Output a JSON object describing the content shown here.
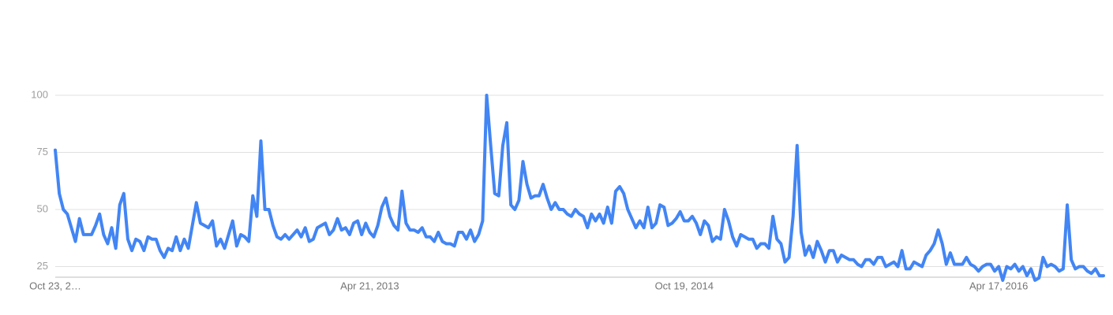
{
  "chart_data": {
    "type": "line",
    "title": "",
    "xlabel": "",
    "ylabel": "",
    "x": {
      "start": "2011-10-23",
      "end": "2016-10-16",
      "interval": "weekly"
    },
    "ylim": [
      0,
      100
    ],
    "y_ticks": [
      25,
      50,
      75,
      100
    ],
    "x_tick_labels": [
      {
        "date": "2011-10-23",
        "label": "Oct 23, 2…"
      },
      {
        "date": "2013-04-21",
        "label": "Apr 21, 2013"
      },
      {
        "date": "2014-10-19",
        "label": "Oct 19, 2014"
      },
      {
        "date": "2016-04-17",
        "label": "Apr 17, 2016"
      }
    ],
    "grid": true,
    "legend": "none",
    "series": [
      {
        "color": "#4285f4",
        "values": [
          76,
          57,
          50,
          48,
          42,
          36,
          46,
          39,
          39,
          39,
          43,
          48,
          39,
          35,
          42,
          33,
          52,
          57,
          37,
          32,
          37,
          36,
          32,
          38,
          37,
          37,
          32,
          29,
          33,
          32,
          38,
          32,
          37,
          33,
          43,
          53,
          44,
          43,
          42,
          45,
          34,
          37,
          33,
          39,
          45,
          34,
          39,
          38,
          36,
          56,
          47,
          80,
          50,
          50,
          43,
          38,
          37,
          39,
          37,
          39,
          41,
          38,
          42,
          36,
          37,
          42,
          43,
          44,
          39,
          41,
          46,
          41,
          42,
          39,
          44,
          45,
          39,
          44,
          40,
          38,
          43,
          51,
          55,
          47,
          43,
          41,
          58,
          44,
          41,
          41,
          40,
          42,
          38,
          38,
          36,
          40,
          36,
          35,
          35,
          34,
          40,
          40,
          37,
          41,
          36,
          39,
          45,
          100,
          78,
          57,
          56,
          78,
          88,
          52,
          50,
          54,
          71,
          61,
          55,
          56,
          56,
          61,
          55,
          50,
          53,
          50,
          50,
          48,
          47,
          50,
          48,
          47,
          42,
          48,
          45,
          48,
          44,
          51,
          44,
          58,
          60,
          57,
          50,
          46,
          42,
          45,
          42,
          51,
          42,
          44,
          52,
          51,
          43,
          44,
          46,
          49,
          45,
          45,
          47,
          44,
          39,
          45,
          43,
          36,
          38,
          37,
          50,
          45,
          38,
          34,
          39,
          38,
          37,
          37,
          33,
          35,
          35,
          33,
          47,
          37,
          35,
          27,
          29,
          47,
          78,
          40,
          30,
          34,
          29,
          36,
          32,
          27,
          32,
          32,
          27,
          30,
          29,
          28,
          28,
          26,
          25,
          28,
          28,
          26,
          29,
          29,
          25,
          26,
          27,
          25,
          32,
          24,
          24,
          27,
          26,
          25,
          30,
          32,
          35,
          41,
          35,
          26,
          31,
          26,
          26,
          26,
          29,
          26,
          25,
          23,
          25,
          26,
          26,
          23,
          25,
          19,
          25,
          24,
          26,
          23,
          25,
          21,
          24,
          19,
          20,
          29,
          25,
          26,
          25,
          23,
          24,
          52,
          28,
          24,
          25,
          25,
          23,
          22,
          24,
          21,
          21
        ]
      }
    ]
  }
}
